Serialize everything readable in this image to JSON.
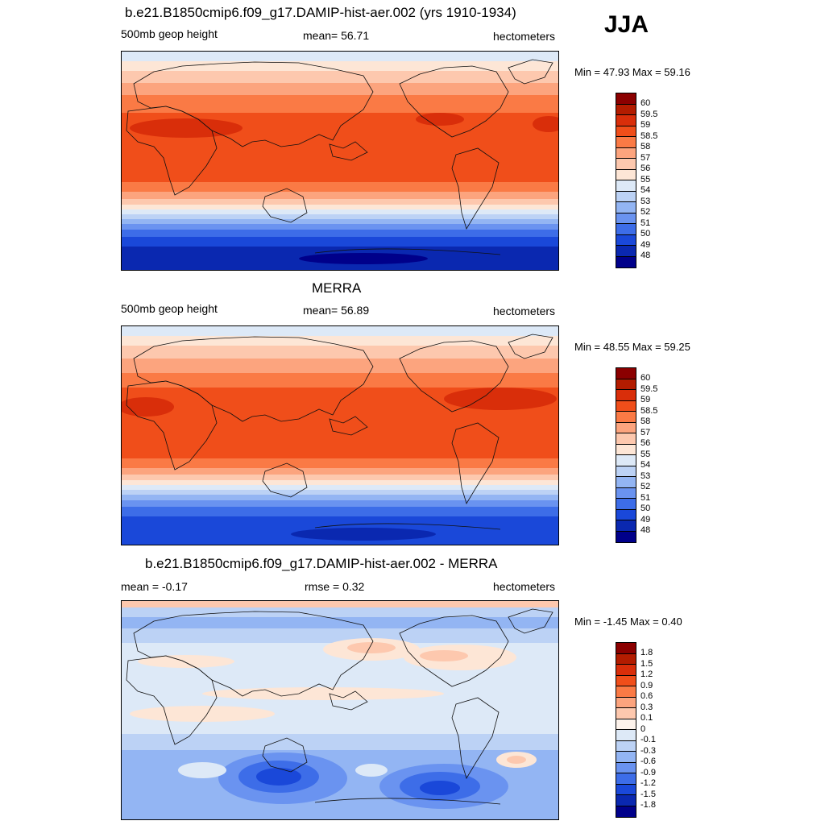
{
  "season": "JJA",
  "panels": [
    {
      "title": "b.e21.B1850cmip6.f09_g17.DAMIP-hist-aer.002 (yrs 1910-1934)",
      "left_label": "500mb geop height",
      "center_label": "mean=  56.71",
      "right_label": "hectometers",
      "minmax": "Min =  47.93 Max =  59.16",
      "colorbar_labels": [
        "60",
        "59.5",
        "59",
        "58.5",
        "58",
        "57",
        "56",
        "55",
        "54",
        "53",
        "52",
        "51",
        "50",
        "49",
        "48"
      ]
    },
    {
      "title": "MERRA",
      "left_label": "500mb geop height",
      "center_label": "mean=  56.89",
      "right_label": "hectometers",
      "minmax": "Min =  48.55 Max =  59.25",
      "colorbar_labels": [
        "60",
        "59.5",
        "59",
        "58.5",
        "58",
        "57",
        "56",
        "55",
        "54",
        "53",
        "52",
        "51",
        "50",
        "49",
        "48"
      ]
    },
    {
      "title": "b.e21.B1850cmip6.f09_g17.DAMIP-hist-aer.002 - MERRA",
      "left_label": "mean =  -0.17",
      "center_label": "rmse =   0.32",
      "right_label": "hectometers",
      "minmax": "Min =  -1.45 Max =   0.40",
      "colorbar_labels": [
        "1.8",
        "1.5",
        "1.2",
        "0.9",
        "0.6",
        "0.3",
        "0.1",
        "0",
        "-0.1",
        "-0.3",
        "-0.6",
        "-0.9",
        "-1.2",
        "-1.5",
        "-1.8"
      ]
    }
  ],
  "colors": {
    "scale": [
      "#8b0000",
      "#b31c00",
      "#d92e0a",
      "#f04e1a",
      "#fa7a45",
      "#fca47e",
      "#fdc8ae",
      "#fde6d6",
      "#dde9f7",
      "#bcd2f5",
      "#93b5f3",
      "#6a93f0",
      "#3d6de8",
      "#1a48d9",
      "#0a28b0",
      "#00008a"
    ],
    "diff_mid": "#fdf3ec"
  }
}
